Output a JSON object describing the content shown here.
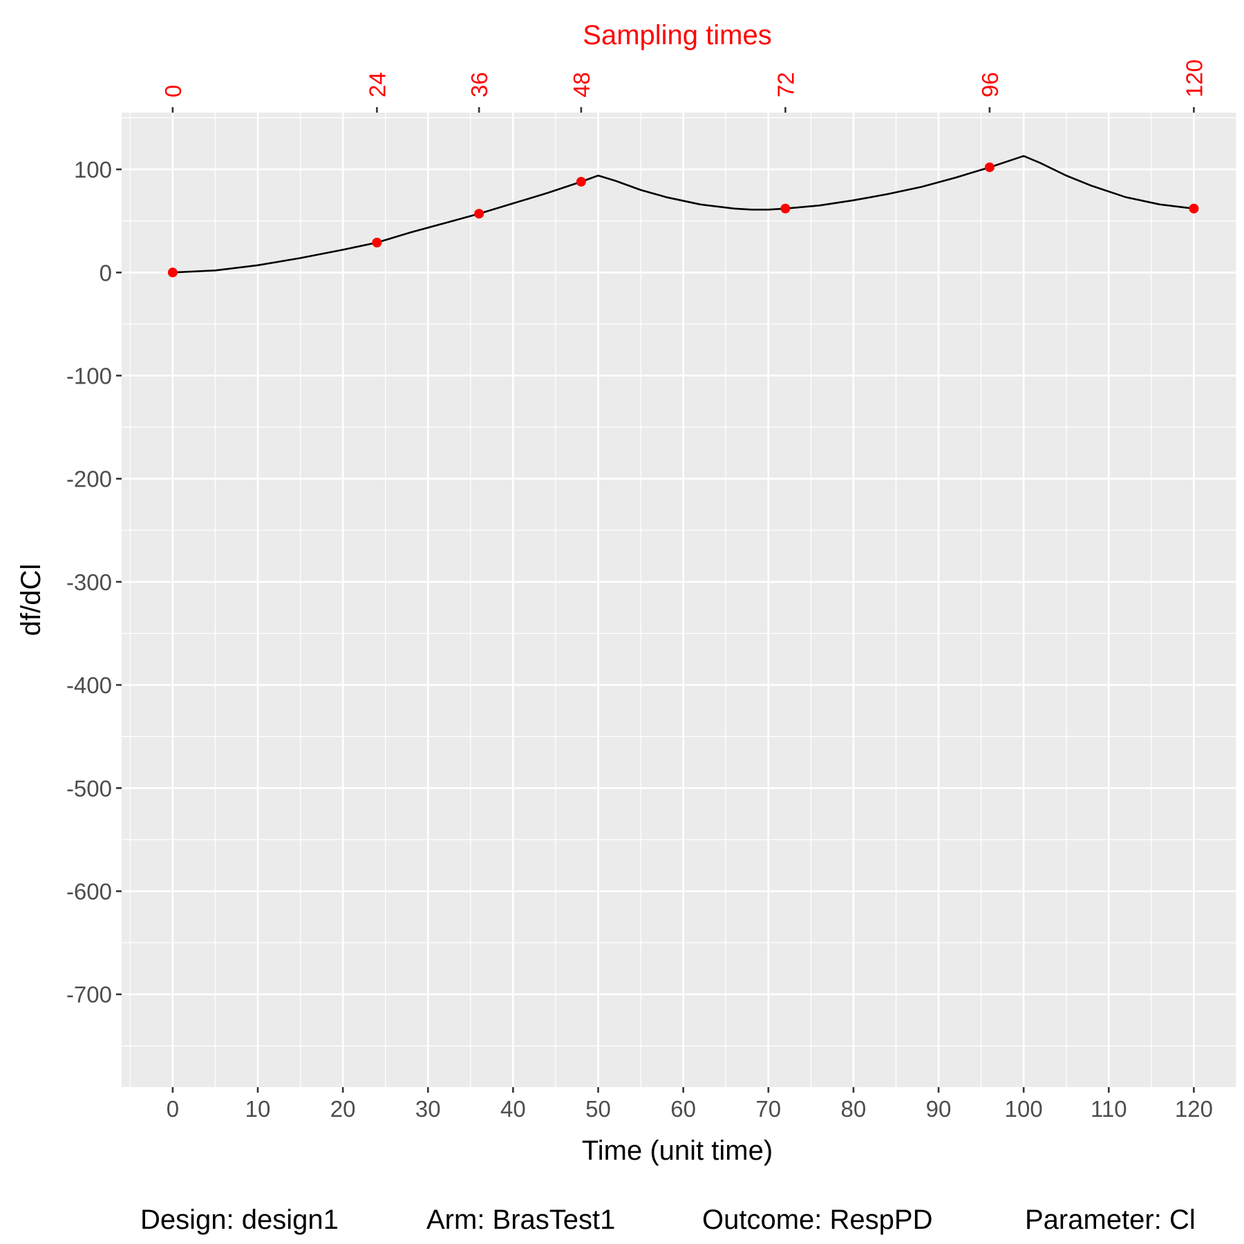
{
  "chart_data": {
    "type": "line",
    "xlabel": "Time (unit time)",
    "ylabel": "df/dCl",
    "top_axis_title": "Sampling times",
    "xlim": [
      -6,
      125
    ],
    "ylim": [
      -790,
      155
    ],
    "x_ticks": [
      0,
      10,
      20,
      30,
      40,
      50,
      60,
      70,
      80,
      90,
      100,
      110,
      120
    ],
    "y_ticks": [
      100,
      0,
      -100,
      -200,
      -300,
      -400,
      -500,
      -600,
      -700
    ],
    "sampling_times": [
      0,
      24,
      36,
      48,
      72,
      96,
      120
    ],
    "grid": true,
    "series": [
      {
        "kind": "line",
        "x": [
          0,
          5,
          10,
          15,
          20,
          24,
          28,
          32,
          36,
          40,
          44,
          48,
          50,
          52,
          55,
          58,
          62,
          66,
          68,
          70,
          72,
          76,
          80,
          84,
          88,
          92,
          96,
          100,
          102,
          105,
          108,
          112,
          116,
          120
        ],
        "y": [
          0,
          2,
          7,
          14,
          22,
          29,
          39,
          48,
          57,
          67,
          77,
          88,
          94,
          89,
          80,
          73,
          66,
          62,
          61,
          61,
          62,
          65,
          70,
          76,
          83,
          92,
          102,
          113,
          106,
          94,
          84,
          73,
          66,
          62
        ]
      },
      {
        "kind": "points",
        "x": [
          0,
          24,
          36,
          48,
          72,
          96,
          120
        ],
        "y": [
          0,
          29,
          57,
          88,
          62,
          102,
          62
        ]
      }
    ],
    "colors": {
      "panel": "#ebebeb",
      "grid": "#ffffff",
      "line": "#000000",
      "points": "#ff0000",
      "sampling": "#ff0000"
    }
  },
  "caption": {
    "design": "Design: design1",
    "arm": "Arm: BrasTest1",
    "outcome": "Outcome: RespPD",
    "parameter": "Parameter: Cl"
  }
}
